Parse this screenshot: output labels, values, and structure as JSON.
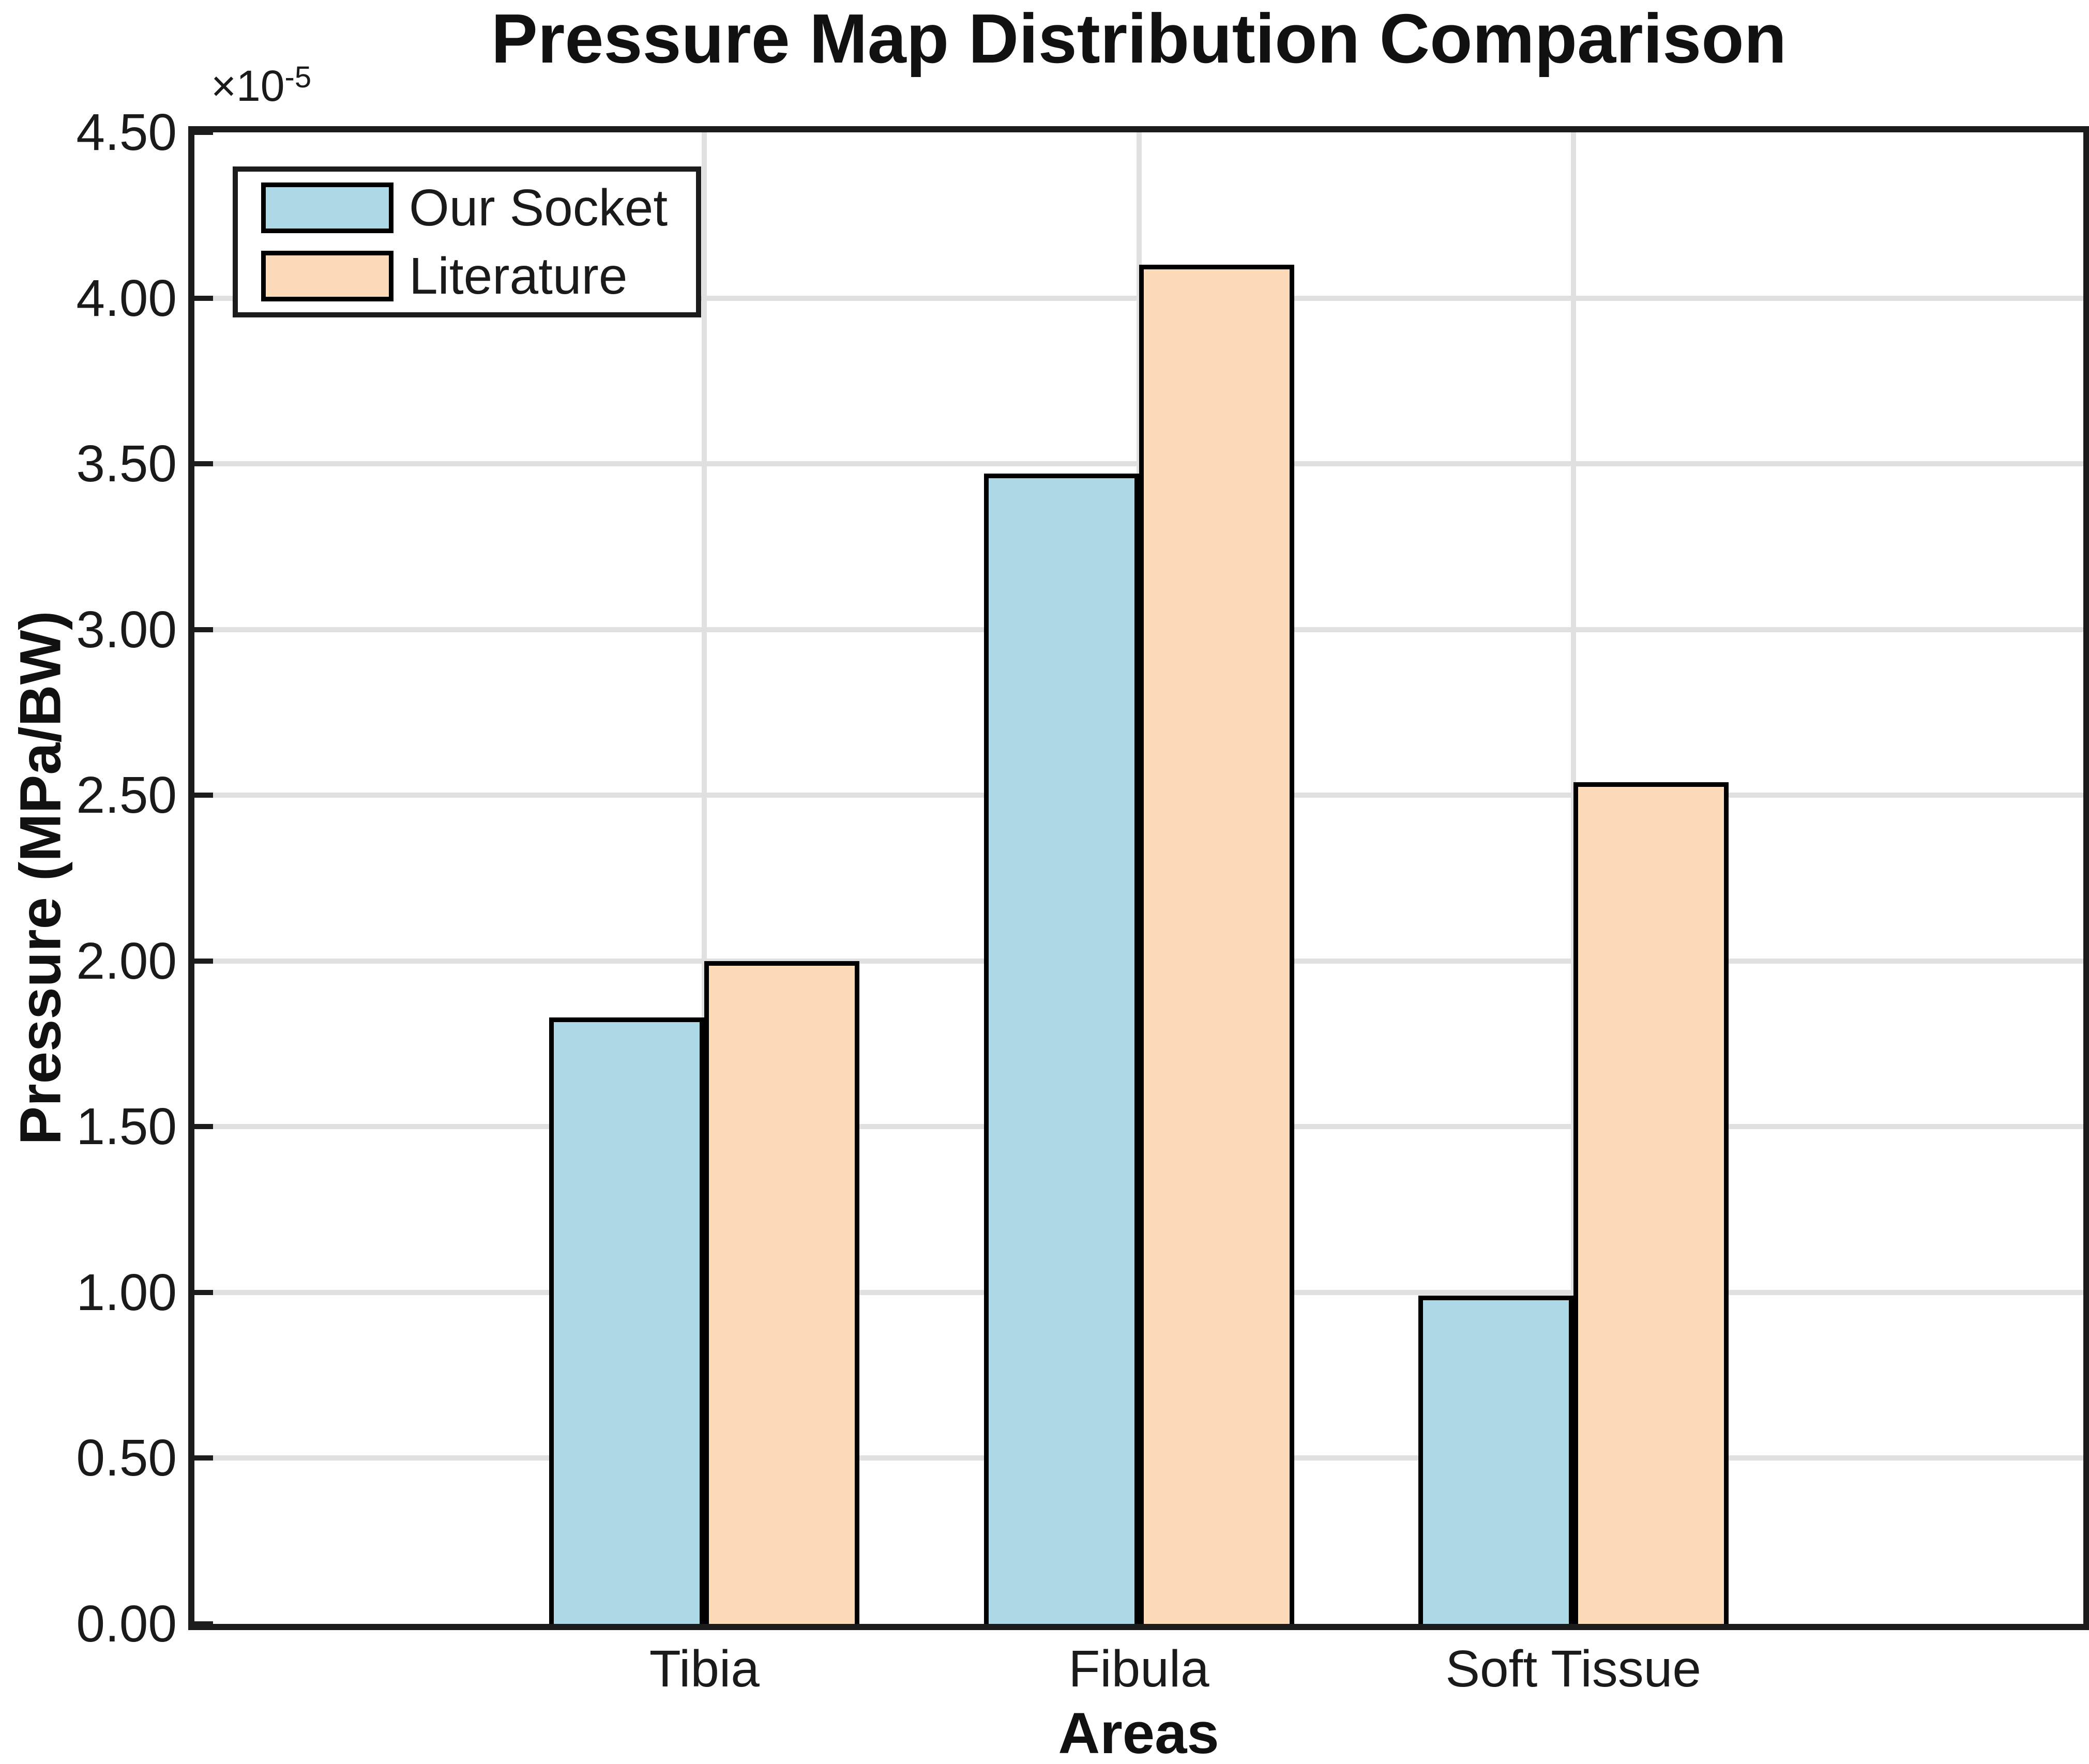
{
  "figure": {
    "title": "Pressure Map Distribution Comparison",
    "ylabel": "Pressure (MPa/BW)",
    "xlabel": "Areas",
    "multiplier": {
      "base": "×10",
      "exponent": "-5"
    }
  },
  "chart_data": {
    "type": "bar",
    "title": "Pressure Map Distribution Comparison",
    "xlabel": "Areas",
    "ylabel": "Pressure (MPa/BW)",
    "y_unit_multiplier": "×10^-5",
    "categories": [
      "Tibia",
      "Fibula",
      "Soft Tissue"
    ],
    "series": [
      {
        "name": "Our Socket",
        "color": "#ADD8E6",
        "values": [
          1.83,
          3.47,
          0.99
        ]
      },
      {
        "name": "Literature",
        "color": "#FDDBB8",
        "values": [
          2.0,
          4.1,
          2.54
        ]
      }
    ],
    "ylim": [
      0,
      4.5
    ],
    "y_tick_labels": [
      "0.00",
      "0.50",
      "1.00",
      "1.50",
      "2.00",
      "2.50",
      "3.00",
      "3.50",
      "4.00",
      "4.50"
    ],
    "grid": true,
    "legend_position": "top-left",
    "axis_color": "#1c1c1c",
    "grid_color": "#e0e0e0",
    "bar_edge_color": "#000000"
  }
}
